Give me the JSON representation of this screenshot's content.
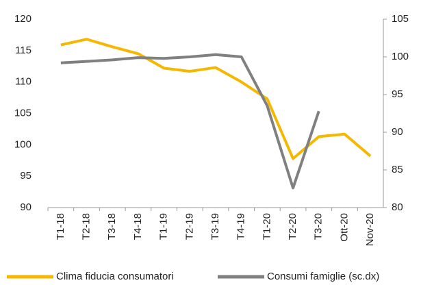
{
  "chart_data": {
    "type": "line",
    "categories": [
      "T1-18",
      "T2-18",
      "T3-18",
      "T4-18",
      "T1-19",
      "T2-19",
      "T3-19",
      "T4-19",
      "T1-20",
      "T2-20",
      "T3-20",
      "Ott-20",
      "Nov-20"
    ],
    "series": [
      {
        "name": "Clima fiducia consumatori",
        "color": "#f5b800",
        "values": [
          115.9,
          116.8,
          115.6,
          114.5,
          112.2,
          111.7,
          112.3,
          110.0,
          107.3,
          97.8,
          101.3,
          101.7,
          98.2
        ]
      },
      {
        "name": "Consumi famiglie (sc.dx)",
        "color": "#808080",
        "axis": "y2",
        "values": [
          99.2,
          99.4,
          99.6,
          99.9,
          99.8,
          100.0,
          100.3,
          100.0,
          93.5,
          82.6,
          92.8,
          null,
          null
        ]
      }
    ],
    "ylim": [
      90,
      120
    ],
    "yticks": [
      90,
      95,
      100,
      105,
      110,
      115,
      120
    ],
    "y2lim": [
      80,
      105
    ],
    "y2ticks": [
      80,
      85,
      90,
      95,
      100,
      105
    ],
    "legend": "bottom"
  }
}
